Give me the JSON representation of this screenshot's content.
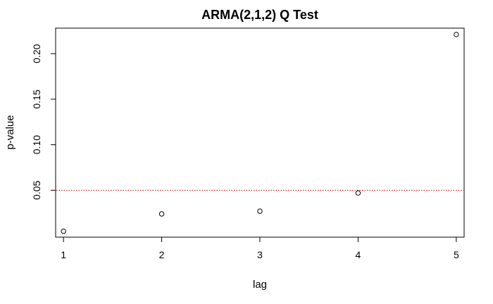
{
  "chart_data": {
    "type": "scatter",
    "title": "ARMA(2,1,2) Q Test",
    "xlabel": "lag",
    "ylabel": "p-value",
    "x": [
      1,
      2,
      3,
      4,
      5
    ],
    "series": [
      {
        "values": [
          0.005,
          0.024,
          0.027,
          0.047,
          0.221
        ]
      }
    ],
    "xlim": [
      0.92,
      5.08
    ],
    "ylim": [
      -0.0015,
      0.228
    ],
    "xticks": [
      1,
      2,
      3,
      4,
      5
    ],
    "yticks": [
      0.05,
      0.1,
      0.15,
      0.2
    ],
    "xtick_labels": [
      "1",
      "2",
      "3",
      "4",
      "5"
    ],
    "ytick_labels": [
      "0.05",
      "0.10",
      "0.15",
      "0.20"
    ],
    "reference_line": {
      "y": 0.05,
      "color": "#cc0000",
      "style": "dotted"
    },
    "marker": "open-circle",
    "grid": false,
    "legend": "none"
  }
}
